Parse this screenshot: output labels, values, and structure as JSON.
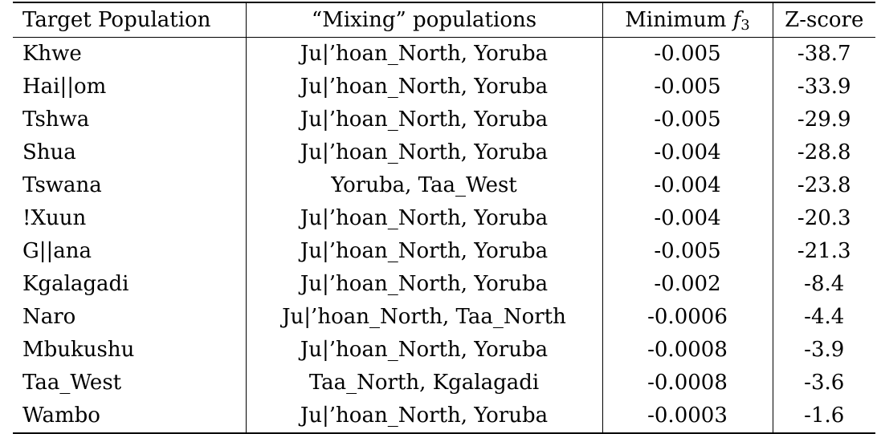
{
  "table": {
    "headers": {
      "target": "Target Population",
      "mixing": "“Mixing” populations",
      "minimum_prefix": "Minimum ",
      "minimum_var": "f",
      "minimum_sub": "3",
      "zscore": "Z-score"
    },
    "rows": [
      {
        "target": "Khwe",
        "mixing": "Ju|’hoan_North, Yoruba",
        "min_f3": "-0.005",
        "z": "-38.7"
      },
      {
        "target": "Hai||om",
        "mixing": "Ju|’hoan_North, Yoruba",
        "min_f3": "-0.005",
        "z": "-33.9"
      },
      {
        "target": "Tshwa",
        "mixing": "Ju|’hoan_North, Yoruba",
        "min_f3": "-0.005",
        "z": "-29.9"
      },
      {
        "target": "Shua",
        "mixing": "Ju|’hoan_North, Yoruba",
        "min_f3": "-0.004",
        "z": "-28.8"
      },
      {
        "target": "Tswana",
        "mixing": "Yoruba, Taa_West",
        "min_f3": "-0.004",
        "z": "-23.8"
      },
      {
        "target": "!Xuun",
        "mixing": "Ju|’hoan_North, Yoruba",
        "min_f3": "-0.004",
        "z": "-20.3"
      },
      {
        "target": "G||ana",
        "mixing": "Ju|’hoan_North, Yoruba",
        "min_f3": "-0.005",
        "z": "-21.3"
      },
      {
        "target": "Kgalagadi",
        "mixing": "Ju|’hoan_North, Yoruba",
        "min_f3": "-0.002",
        "z": "-8.4"
      },
      {
        "target": "Naro",
        "mixing": "Ju|’hoan_North, Taa_North",
        "min_f3": "-0.0006",
        "z": "-4.4"
      },
      {
        "target": "Mbukushu",
        "mixing": "Ju|’hoan_North, Yoruba",
        "min_f3": "-0.0008",
        "z": "-3.9"
      },
      {
        "target": "Taa_West",
        "mixing": "Taa_North, Kgalagadi",
        "min_f3": "-0.0008",
        "z": "-3.6"
      },
      {
        "target": "Wambo",
        "mixing": "Ju|’hoan_North, Yoruba",
        "min_f3": "-0.0003",
        "z": "-1.6"
      }
    ]
  }
}
